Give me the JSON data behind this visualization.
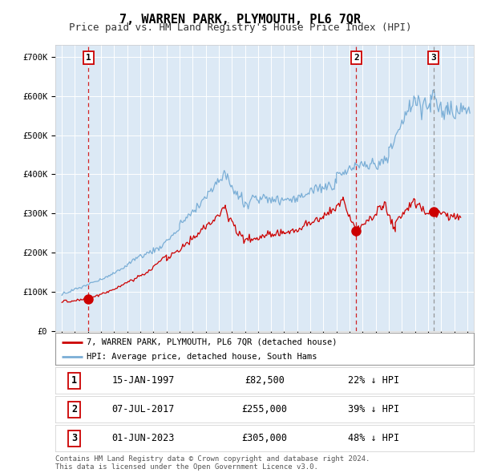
{
  "title": "7, WARREN PARK, PLYMOUTH, PL6 7QR",
  "subtitle": "Price paid vs. HM Land Registry's House Price Index (HPI)",
  "ylabel_ticks": [
    "£0",
    "£100K",
    "£200K",
    "£300K",
    "£400K",
    "£500K",
    "£600K",
    "£700K"
  ],
  "ytick_values": [
    0,
    100000,
    200000,
    300000,
    400000,
    500000,
    600000,
    700000
  ],
  "ylim": [
    0,
    730000
  ],
  "xlim_start": 1994.5,
  "xlim_end": 2026.5,
  "bg_color": "#dce9f5",
  "grid_color": "#ffffff",
  "red_line_color": "#cc0000",
  "blue_line_color": "#7aaed6",
  "sale_marker_color": "#cc0000",
  "transactions": [
    {
      "num": 1,
      "date": "15-JAN-1997",
      "price": 82500,
      "year": 1997.04,
      "hpi_pct": "22% ↓ HPI",
      "dashed_color": "#cc0000"
    },
    {
      "num": 2,
      "date": "07-JUL-2017",
      "price": 255000,
      "year": 2017.51,
      "hpi_pct": "39% ↓ HPI",
      "dashed_color": "#cc0000"
    },
    {
      "num": 3,
      "date": "01-JUN-2023",
      "price": 305000,
      "year": 2023.41,
      "hpi_pct": "48% ↓ HPI",
      "dashed_color": "#888888"
    }
  ],
  "legend_label_red": "7, WARREN PARK, PLYMOUTH, PL6 7QR (detached house)",
  "legend_label_blue": "HPI: Average price, detached house, South Hams",
  "footer": "Contains HM Land Registry data © Crown copyright and database right 2024.\nThis data is licensed under the Open Government Licence v3.0.",
  "title_fontsize": 11,
  "subtitle_fontsize": 9,
  "tick_fontsize": 7.5,
  "fig_width": 6.0,
  "fig_height": 5.9
}
